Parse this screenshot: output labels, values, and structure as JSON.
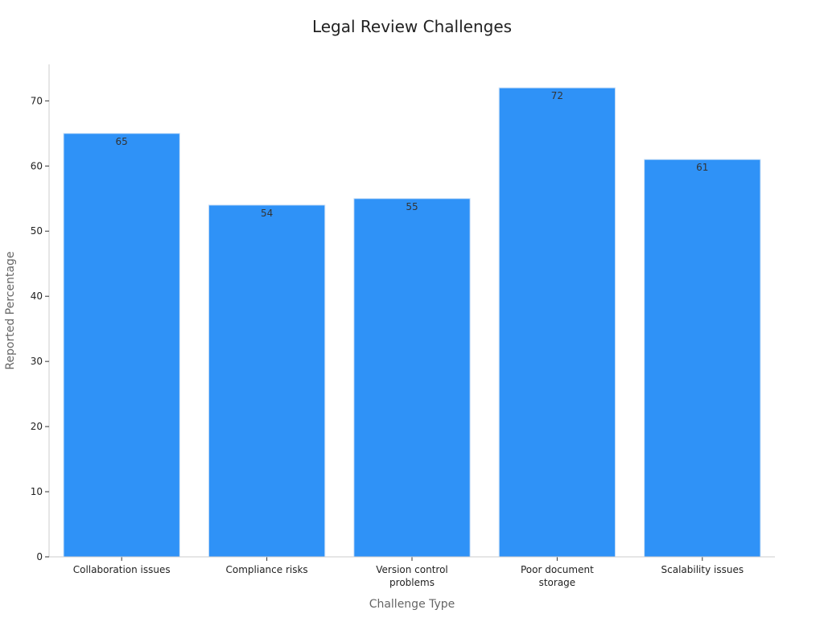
{
  "chart_data": {
    "type": "bar",
    "title": "Legal Review Challenges",
    "xlabel": "Challenge Type",
    "ylabel": "Reported Percentage",
    "categories": [
      [
        "Collaboration issues"
      ],
      [
        "Compliance risks"
      ],
      [
        "Version control",
        "problems"
      ],
      [
        "Poor document",
        "storage"
      ],
      [
        "Scalability issues"
      ]
    ],
    "values": [
      65,
      54,
      55,
      72,
      61
    ],
    "data_labels": [
      "65",
      "54",
      "55",
      "72",
      "61"
    ],
    "yticks": [
      0,
      10,
      20,
      30,
      40,
      50,
      60,
      70
    ],
    "ylim": [
      0,
      75.6
    ],
    "grid": false,
    "legend": "none",
    "colors": {
      "bar": "#2f92f7",
      "bar_edge": "#c9dff7"
    }
  }
}
